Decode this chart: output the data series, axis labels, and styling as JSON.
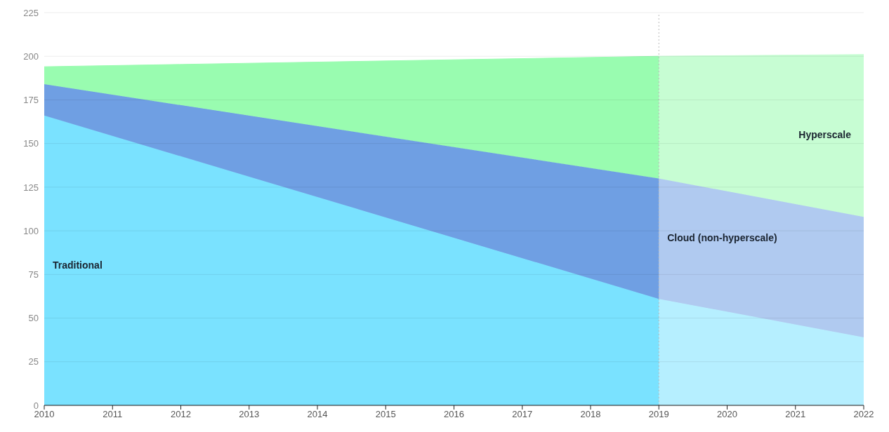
{
  "chart_data": {
    "type": "area",
    "stacked": true,
    "x": [
      2010,
      2019,
      2022
    ],
    "series": [
      {
        "name": "Traditional",
        "color": "#7ae2ff",
        "values": [
          166,
          61,
          39
        ]
      },
      {
        "name": "Cloud (non-hyperscale)",
        "color": "#6f9fe3",
        "values": [
          18,
          69,
          69
        ]
      },
      {
        "name": "Hyperscale",
        "color": "#99fcb0",
        "values": [
          10,
          70,
          93
        ]
      }
    ],
    "xlim": [
      2010,
      2022
    ],
    "xticks": [
      2010,
      2011,
      2012,
      2013,
      2014,
      2015,
      2016,
      2017,
      2018,
      2019,
      2020,
      2021,
      2022
    ],
    "ylim": [
      0,
      225
    ],
    "yticks": [
      0,
      25,
      50,
      75,
      100,
      125,
      150,
      175,
      200,
      225
    ],
    "grid": "y",
    "legend": false,
    "ref_lines": [
      {
        "axis": "x",
        "value": 2019,
        "color": "#bbbbbb",
        "line_style": "dotted"
      }
    ],
    "bands": [
      {
        "axis": "x",
        "from": 2019,
        "to": 2022,
        "color": "#ffffff"
      }
    ]
  }
}
